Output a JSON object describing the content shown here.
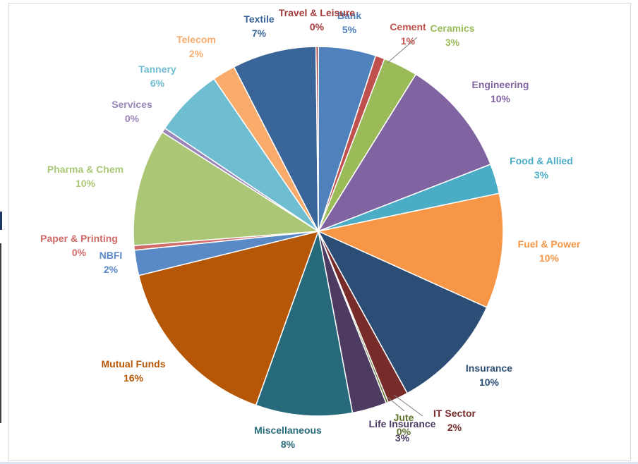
{
  "chart_data": {
    "type": "pie",
    "title": "",
    "slices": [
      {
        "name": "Bank",
        "value": 5,
        "pct_label": "5%",
        "color": "#4F81BD"
      },
      {
        "name": "Cement",
        "value": 0.8,
        "pct_label": "1%",
        "color": "#C0504D"
      },
      {
        "name": "Ceramics",
        "value": 3,
        "pct_label": "3%",
        "color": "#9BBB59"
      },
      {
        "name": "Engineering",
        "value": 10.2,
        "pct_label": "10%",
        "color": "#8064A2"
      },
      {
        "name": "Food & Allied",
        "value": 2.6,
        "pct_label": "3%",
        "color": "#4BACC6"
      },
      {
        "name": "Fuel & Power",
        "value": 10,
        "pct_label": "10%",
        "color": "#F79646"
      },
      {
        "name": "Insurance",
        "value": 10.2,
        "pct_label": "10%",
        "color": "#2C4D75"
      },
      {
        "name": "IT Sector",
        "value": 1.8,
        "pct_label": "2%",
        "color": "#772C2A"
      },
      {
        "name": "Jute",
        "value": 0.2,
        "pct_label": "0%",
        "color": "#5F7530"
      },
      {
        "name": "Life Insurance",
        "value": 3,
        "pct_label": "3%",
        "color": "#4D3B62"
      },
      {
        "name": "Miscellaneous",
        "value": 8.4,
        "pct_label": "8%",
        "color": "#276A7C"
      },
      {
        "name": "Mutual Funds",
        "value": 15.6,
        "pct_label": "16%",
        "color": "#B65708"
      },
      {
        "name": "NBFI",
        "value": 2.2,
        "pct_label": "2%",
        "color": "#5A8AC6"
      },
      {
        "name": "Paper & Printing",
        "value": 0.4,
        "pct_label": "0%",
        "color": "#D16B69"
      },
      {
        "name": "Pharma & Chem",
        "value": 10.2,
        "pct_label": "10%",
        "color": "#ABC776"
      },
      {
        "name": "Services",
        "value": 0.4,
        "pct_label": "0%",
        "color": "#9A84B8"
      },
      {
        "name": "Tannery",
        "value": 6,
        "pct_label": "6%",
        "color": "#6FBDD1"
      },
      {
        "name": "Telecom",
        "value": 2,
        "pct_label": "2%",
        "color": "#F9AB6B"
      },
      {
        "name": "Textile",
        "value": 7.3,
        "pct_label": "7%",
        "color": "#3A6598"
      },
      {
        "name": "Travel & Leisure",
        "value": 0.2,
        "pct_label": "0%",
        "color": "#A23B38"
      }
    ]
  }
}
